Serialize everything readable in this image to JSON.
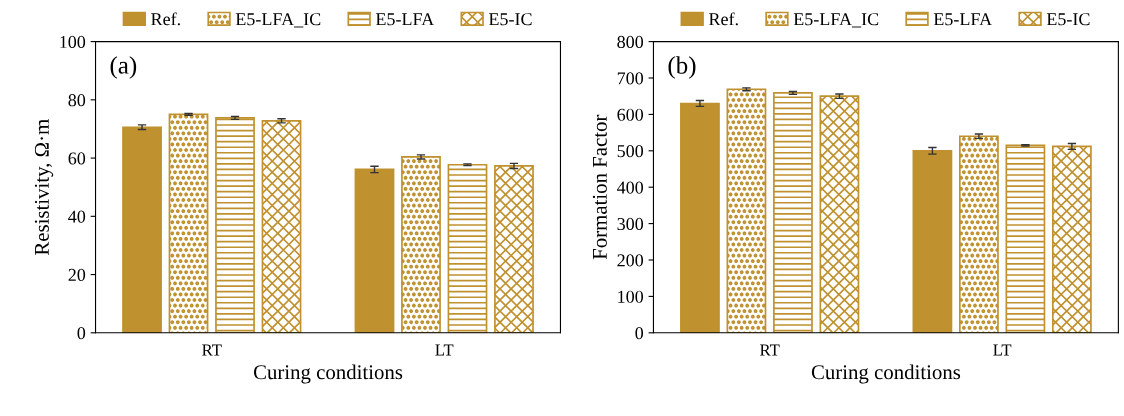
{
  "chart_data": [
    {
      "type": "bar",
      "xlabel": "Curing conditions",
      "ylabel": "Resistivity, Ω·m",
      "annotations": [
        "(a)"
      ],
      "categories": [
        "RT",
        "LT"
      ],
      "ylim": [
        0,
        100
      ],
      "yticks": [
        0,
        20,
        40,
        60,
        80,
        100
      ],
      "legend": "top",
      "grid": false,
      "series": [
        {
          "name": "Ref.",
          "color": "#bf912f",
          "values": [
            70.6,
            56.1
          ],
          "errors": [
            0.8,
            1.1
          ]
        },
        {
          "name": "E5-LFA_IC",
          "color": "#bf912f",
          "values": [
            75.0,
            60.4
          ],
          "errors": [
            0.3,
            0.7
          ]
        },
        {
          "name": "E5-LFA",
          "color": "#bf912f",
          "values": [
            73.8,
            57.7
          ],
          "errors": [
            0.5,
            0.3
          ]
        },
        {
          "name": "E5-IC",
          "color": "#bf912f",
          "values": [
            72.8,
            57.3
          ],
          "errors": [
            0.7,
            0.9
          ]
        }
      ]
    },
    {
      "type": "bar",
      "xlabel": "Curing conditions",
      "ylabel": "Formation Factor",
      "annotations": [
        "(b)"
      ],
      "categories": [
        "RT",
        "LT"
      ],
      "ylim": [
        0,
        800
      ],
      "yticks": [
        0,
        100,
        200,
        300,
        400,
        500,
        600,
        700,
        800
      ],
      "legend": "top",
      "grid": false,
      "series": [
        {
          "name": "Ref.",
          "color": "#bf912f",
          "values": [
            630,
            500
          ],
          "errors": [
            8,
            9
          ]
        },
        {
          "name": "E5-LFA_IC",
          "color": "#bf912f",
          "values": [
            669,
            540
          ],
          "errors": [
            4,
            6
          ]
        },
        {
          "name": "E5-LFA",
          "color": "#bf912f",
          "values": [
            659,
            515
          ],
          "errors": [
            4,
            2
          ]
        },
        {
          "name": "E5-IC",
          "color": "#bf912f",
          "values": [
            650,
            512
          ],
          "errors": [
            6,
            8
          ]
        }
      ]
    }
  ]
}
